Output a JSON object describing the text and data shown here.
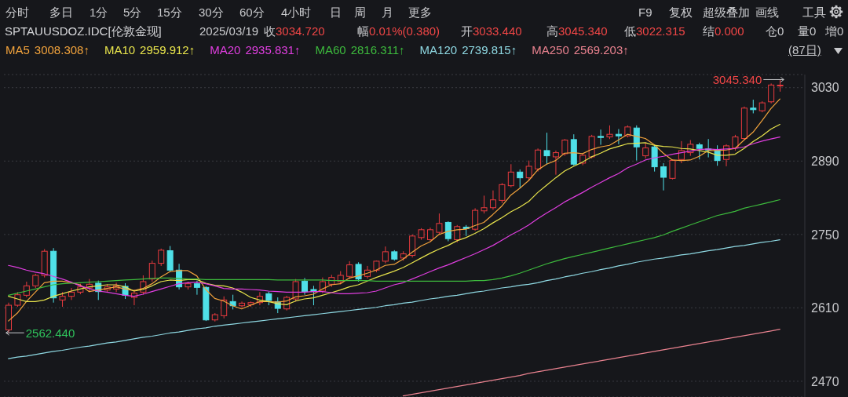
{
  "chart_data": {
    "type": "candlestick",
    "title": "SPTAUUSDOZ.IDC[伦敦金现]",
    "subtitle": "2025/03/19",
    "categories": [
      null,
      null,
      null,
      null,
      null,
      null,
      null,
      null,
      null,
      null,
      null,
      null,
      null,
      null,
      null,
      null,
      null,
      null,
      null,
      null,
      null,
      null,
      null,
      null,
      null,
      null,
      null,
      null,
      null,
      null,
      null,
      null,
      null,
      null,
      null,
      null,
      null,
      null,
      null,
      null,
      null,
      null,
      null,
      null,
      null,
      null,
      null,
      null,
      null,
      null,
      null,
      null,
      null,
      null,
      null,
      null,
      null,
      null,
      null,
      null,
      null,
      null,
      null,
      null,
      null,
      null,
      null,
      null,
      null,
      null,
      null,
      null,
      null,
      null,
      null,
      null,
      null,
      null,
      null,
      null,
      null,
      null,
      null,
      null,
      null,
      null,
      null
    ],
    "ohlc": [
      [
        2568,
        2620,
        2562.44,
        2615
      ],
      [
        2615,
        2640,
        2612,
        2635
      ],
      [
        2634,
        2660,
        2630,
        2652
      ],
      [
        2652,
        2675,
        2648,
        2672
      ],
      [
        2672,
        2722,
        2668,
        2718
      ],
      [
        2718,
        2724,
        2620,
        2629
      ],
      [
        2625,
        2640,
        2612,
        2632
      ],
      [
        2632,
        2648,
        2625,
        2640
      ],
      [
        2640,
        2656,
        2636,
        2650
      ],
      [
        2648,
        2665,
        2640,
        2655
      ],
      [
        2657,
        2662,
        2625,
        2641
      ],
      [
        2644,
        2655,
        2640,
        2650
      ],
      [
        2646,
        2658,
        2640,
        2652
      ],
      [
        2651,
        2657,
        2627,
        2634
      ],
      [
        2630,
        2645,
        2615,
        2638
      ],
      [
        2640,
        2672,
        2635,
        2660
      ],
      [
        2665,
        2700,
        2660,
        2695
      ],
      [
        2695,
        2723,
        2690,
        2720
      ],
      [
        2719,
        2728,
        2678,
        2682
      ],
      [
        2682,
        2694,
        2645,
        2650
      ],
      [
        2650,
        2660,
        2645,
        2656
      ],
      [
        2656,
        2662,
        2635,
        2649
      ],
      [
        2649,
        2651,
        2585,
        2587
      ],
      [
        2587,
        2600,
        2584,
        2597
      ],
      [
        2595,
        2632,
        2590,
        2625
      ],
      [
        2622,
        2635,
        2607,
        2614
      ],
      [
        2614,
        2622,
        2610,
        2619
      ],
      [
        2616,
        2622,
        2612,
        2620
      ],
      [
        2620,
        2640,
        2615,
        2632
      ],
      [
        2637,
        2641,
        2615,
        2624
      ],
      [
        2622,
        2630,
        2600,
        2609
      ],
      [
        2608,
        2633,
        2605,
        2630
      ],
      [
        2627,
        2665,
        2622,
        2660
      ],
      [
        2661,
        2667,
        2635,
        2641
      ],
      [
        2645,
        2652,
        2615,
        2641
      ],
      [
        2642,
        2668,
        2638,
        2660
      ],
      [
        2655,
        2673,
        2650,
        2668
      ],
      [
        2660,
        2680,
        2655,
        2672
      ],
      [
        2670,
        2699,
        2665,
        2692
      ],
      [
        2693,
        2697,
        2660,
        2665
      ],
      [
        2670,
        2690,
        2666,
        2682
      ],
      [
        2682,
        2700,
        2678,
        2699
      ],
      [
        2699,
        2727,
        2695,
        2717
      ],
      [
        2717,
        2720,
        2700,
        2703
      ],
      [
        2705,
        2718,
        2700,
        2713
      ],
      [
        2710,
        2750,
        2706,
        2747
      ],
      [
        2744,
        2762,
        2740,
        2759
      ],
      [
        2740,
        2763,
        2737,
        2759
      ],
      [
        2754,
        2790,
        2750,
        2771
      ],
      [
        2773,
        2775,
        2737,
        2742
      ],
      [
        2740,
        2768,
        2735,
        2765
      ],
      [
        2764,
        2768,
        2747,
        2761
      ],
      [
        2760,
        2800,
        2757,
        2796
      ],
      [
        2795,
        2824,
        2790,
        2801
      ],
      [
        2801,
        2834,
        2797,
        2816
      ],
      [
        2815,
        2848,
        2810,
        2845
      ],
      [
        2843,
        2884,
        2840,
        2869
      ],
      [
        2869,
        2874,
        2839,
        2858
      ],
      [
        2858,
        2891,
        2852,
        2880
      ],
      [
        2875,
        2914,
        2870,
        2911
      ],
      [
        2910,
        2944,
        2884,
        2900
      ],
      [
        2898,
        2910,
        2864,
        2906
      ],
      [
        2904,
        2932,
        2900,
        2930
      ],
      [
        2931,
        2941,
        2881,
        2884
      ],
      [
        2886,
        2905,
        2882,
        2901
      ],
      [
        2898,
        2940,
        2895,
        2937
      ],
      [
        2937,
        2950,
        2921,
        2935
      ],
      [
        2936,
        2958,
        2932,
        2941
      ],
      [
        2941,
        2951,
        2922,
        2938
      ],
      [
        2938,
        2958,
        2935,
        2955
      ],
      [
        2953,
        2958,
        2891,
        2917
      ],
      [
        2900,
        2925,
        2895,
        2915
      ],
      [
        2917,
        2920,
        2870,
        2879
      ],
      [
        2879,
        2886,
        2834,
        2859
      ],
      [
        2857,
        2893,
        2855,
        2891
      ],
      [
        2893,
        2928,
        2886,
        2910
      ],
      [
        2906,
        2930,
        2900,
        2922
      ],
      [
        2921,
        2925,
        2893,
        2914
      ],
      [
        2913,
        2932,
        2897,
        2911
      ],
      [
        2911,
        2920,
        2881,
        2891
      ],
      [
        2893,
        2922,
        2880,
        2919
      ],
      [
        2915,
        2940,
        2910,
        2936
      ],
      [
        2933,
        2994,
        2930,
        2991
      ],
      [
        2991,
        3007,
        2981,
        2988
      ],
      [
        2986,
        3004,
        2983,
        3001
      ],
      [
        3003,
        3038,
        3000,
        3035
      ],
      [
        3033.44,
        3045.34,
        3022.315,
        3034.72
      ]
    ],
    "colors": [
      "#e83b3f",
      "#e83b3f",
      "#e83b3f",
      "#e83b3f",
      "#e83b3f",
      "#4fe0e8",
      "#e83b3f",
      "#e83b3f",
      "#e83b3f",
      "#e83b3f",
      "#4fe0e8",
      "#e83b3f",
      "#e83b3f",
      "#4fe0e8",
      "#e83b3f",
      "#e83b3f",
      "#e83b3f",
      "#e83b3f",
      "#4fe0e8",
      "#4fe0e8",
      "#e83b3f",
      "#4fe0e8",
      "#4fe0e8",
      "#e83b3f",
      "#e83b3f",
      "#4fe0e8",
      "#e83b3f",
      "#e83b3f",
      "#e83b3f",
      "#4fe0e8",
      "#4fe0e8",
      "#e83b3f",
      "#e83b3f",
      "#4fe0e8",
      "#4fe0e8",
      "#e83b3f",
      "#e83b3f",
      "#e83b3f",
      "#e83b3f",
      "#4fe0e8",
      "#e83b3f",
      "#e83b3f",
      "#e83b3f",
      "#4fe0e8",
      "#e83b3f",
      "#e83b3f",
      "#e83b3f",
      "#e83b3f",
      "#e83b3f",
      "#4fe0e8",
      "#e83b3f",
      "#4fe0e8",
      "#e83b3f",
      "#e83b3f",
      "#e83b3f",
      "#e83b3f",
      "#e83b3f",
      "#4fe0e8",
      "#e83b3f",
      "#e83b3f",
      "#4fe0e8",
      "#e83b3f",
      "#e83b3f",
      "#4fe0e8",
      "#e83b3f",
      "#e83b3f",
      "#4fe0e8",
      "#e83b3f",
      "#4fe0e8",
      "#e83b3f",
      "#4fe0e8",
      "#e83b3f",
      "#4fe0e8",
      "#4fe0e8",
      "#e83b3f",
      "#e83b3f",
      "#e83b3f",
      "#4fe0e8",
      "#4fe0e8",
      "#4fe0e8",
      "#e83b3f",
      "#e83b3f",
      "#e83b3f",
      "#4fe0e8",
      "#e83b3f",
      "#e83b3f",
      "#e83b3f"
    ],
    "series": [
      {
        "name": "MA5",
        "type": "line",
        "color": "#f2a33c",
        "values": [
          2585,
          2600,
          2622,
          2640,
          2658,
          2661,
          2661,
          2658,
          2654,
          2641,
          2644,
          2647,
          2650,
          2646,
          2643,
          2647,
          2656,
          2669,
          2679,
          2681,
          2681,
          2671,
          2645,
          2628,
          2623,
          2614,
          2608,
          2615,
          2622,
          2622,
          2621,
          2623,
          2631,
          2633,
          2636,
          2646,
          2654,
          2656,
          2667,
          2671,
          2676,
          2682,
          2691,
          2693,
          2703,
          2716,
          2728,
          2736,
          2750,
          2756,
          2759,
          2760,
          2767,
          2773,
          2788,
          2804,
          2825,
          2838,
          2853,
          2873,
          2884,
          2891,
          2905,
          2906,
          2904,
          2912,
          2917,
          2920,
          2930,
          2941,
          2937,
          2933,
          2921,
          2905,
          2892,
          2891,
          2892,
          2899,
          2910,
          2910,
          2911,
          2914,
          2930,
          2945,
          2967,
          2990,
          3008.308
        ]
      },
      {
        "name": "MA10",
        "type": "line",
        "color": "#e8e44c",
        "values": [
          2632,
          2627,
          2622,
          2622,
          2625,
          2632,
          2637,
          2642,
          2646,
          2650,
          2652,
          2654,
          2654,
          2650,
          2642,
          2645,
          2652,
          2660,
          2663,
          2662,
          2664,
          2664,
          2657,
          2653,
          2652,
          2648,
          2640,
          2630,
          2625,
          2622,
          2618,
          2616,
          2623,
          2627,
          2629,
          2634,
          2639,
          2644,
          2650,
          2654,
          2661,
          2668,
          2674,
          2680,
          2687,
          2696,
          2705,
          2714,
          2722,
          2729,
          2738,
          2744,
          2752,
          2761,
          2772,
          2782,
          2793,
          2802,
          2813,
          2830,
          2844,
          2858,
          2871,
          2880,
          2888,
          2898,
          2905,
          2913,
          2918,
          2923,
          2924,
          2925,
          2920,
          2918,
          2917,
          2914,
          2913,
          2910,
          2907,
          2901,
          2901,
          2903,
          2914,
          2927,
          2938,
          2951,
          2959.912
        ]
      },
      {
        "name": "MA20",
        "type": "line",
        "color": "#e03ee0",
        "values": [
          2691,
          2687,
          2682,
          2678,
          2675,
          2670,
          2665,
          2659,
          2652,
          2647,
          2642,
          2640,
          2637,
          2634,
          2632,
          2636,
          2641,
          2646,
          2651,
          2656,
          2658,
          2659,
          2656,
          2652,
          2647,
          2646,
          2646,
          2645,
          2644,
          2642,
          2641,
          2640,
          2640,
          2640,
          2641,
          2641,
          2639,
          2637,
          2637,
          2638,
          2639,
          2642,
          2648,
          2654,
          2658,
          2665,
          2672,
          2679,
          2686,
          2692,
          2699,
          2706,
          2713,
          2721,
          2729,
          2739,
          2749,
          2758,
          2768,
          2780,
          2791,
          2801,
          2812,
          2821,
          2830,
          2840,
          2849,
          2858,
          2866,
          2877,
          2884,
          2892,
          2896,
          2899,
          2903,
          2906,
          2909,
          2912,
          2913,
          2912,
          2913,
          2914,
          2917,
          2923,
          2928,
          2932,
          2935.831
        ]
      },
      {
        "name": "MA60",
        "type": "line",
        "color": "#3dbb3d",
        "values": [
          2634,
          2638,
          2642,
          2646,
          2650,
          2654,
          2656,
          2657,
          2658,
          2659,
          2660,
          2661,
          2662,
          2663,
          2664,
          2665,
          2666,
          2667,
          2667,
          2666,
          2665,
          2665,
          2664,
          2664,
          2664,
          2664,
          2664,
          2664,
          2664,
          2664,
          2663,
          2663,
          2663,
          2663,
          2663,
          2663,
          2662,
          2662,
          2662,
          2662,
          2662,
          2661,
          2661,
          2661,
          2661,
          2661,
          2661,
          2661,
          2661,
          2661,
          2661,
          2661,
          2662,
          2662,
          2664,
          2667,
          2671,
          2676,
          2682,
          2688,
          2694,
          2699,
          2704,
          2708,
          2712,
          2716,
          2720,
          2724,
          2728,
          2732,
          2736,
          2740,
          2744,
          2749,
          2756,
          2762,
          2768,
          2774,
          2780,
          2786,
          2790,
          2794,
          2800,
          2804,
          2808,
          2812,
          2816.311
        ]
      },
      {
        "name": "MA120",
        "type": "line",
        "color": "#8fd9e3",
        "values": [
          2513,
          2516,
          2518,
          2521,
          2524,
          2527,
          2529,
          2532,
          2535,
          2537,
          2540,
          2543,
          2545,
          2548,
          2551,
          2554,
          2556,
          2559,
          2562,
          2564,
          2567,
          2570,
          2572,
          2575,
          2577,
          2579,
          2581,
          2583,
          2585,
          2587,
          2589,
          2591,
          2593,
          2595,
          2597,
          2599,
          2601,
          2603,
          2605,
          2607,
          2609,
          2611,
          2614,
          2616,
          2619,
          2621,
          2624,
          2627,
          2629,
          2632,
          2634,
          2637,
          2640,
          2642,
          2645,
          2648,
          2650,
          2653,
          2655,
          2658,
          2662,
          2665,
          2669,
          2672,
          2676,
          2679,
          2683,
          2686,
          2690,
          2693,
          2697,
          2700,
          2703,
          2705,
          2708,
          2711,
          2713,
          2716,
          2719,
          2721,
          2724,
          2727,
          2729,
          2732,
          2735,
          2737,
          2739.815
        ]
      },
      {
        "name": "MA250",
        "type": "line",
        "color": "#e9828f",
        "values": [
          null,
          null,
          null,
          null,
          null,
          null,
          null,
          null,
          null,
          null,
          null,
          null,
          null,
          null,
          null,
          null,
          null,
          null,
          null,
          null,
          null,
          null,
          null,
          null,
          null,
          null,
          null,
          null,
          null,
          null,
          null,
          null,
          null,
          null,
          null,
          null,
          null,
          null,
          null,
          null,
          null,
          null,
          null,
          null,
          2442,
          2445,
          2448,
          2451,
          2454,
          2457,
          2460,
          2463,
          2466,
          2469,
          2472,
          2475,
          2478,
          2481,
          2485,
          2488,
          2491,
          2494,
          2497,
          2500,
          2503,
          2506,
          2509,
          2512,
          2515,
          2518,
          2521,
          2524,
          2527,
          2530,
          2533,
          2536,
          2539,
          2542,
          2545,
          2548,
          2551,
          2554,
          2557,
          2560,
          2563,
          2566,
          2569.203
        ]
      }
    ],
    "ylim": [
      2440,
      3055
    ],
    "yticks": [
      2470,
      2610,
      2750,
      2890,
      3030
    ],
    "grid": "y",
    "legend": "top left",
    "tick_labels": "y",
    "annotations": [
      "分时",
      "多日",
      "1分",
      "5分",
      "15分",
      "30分",
      "60分",
      "4小时",
      "日",
      "周",
      "月",
      "更多",
      "F9",
      "复权",
      "超级叠加",
      "画线",
      "工具",
      "收",
      "3034.720",
      "幅",
      "0.01%(0.380)",
      "开",
      "3033.440",
      "高",
      "3045.340",
      "低",
      "3022.315",
      "结",
      "0.000",
      "仓0",
      "量0",
      "增0",
      "3008.308↑",
      "2959.912↑",
      "2935.831↑",
      "2816.311↑",
      "2739.815↑",
      "2569.203↑",
      "(87日)",
      "3045.340",
      "2562.440"
    ]
  }
}
